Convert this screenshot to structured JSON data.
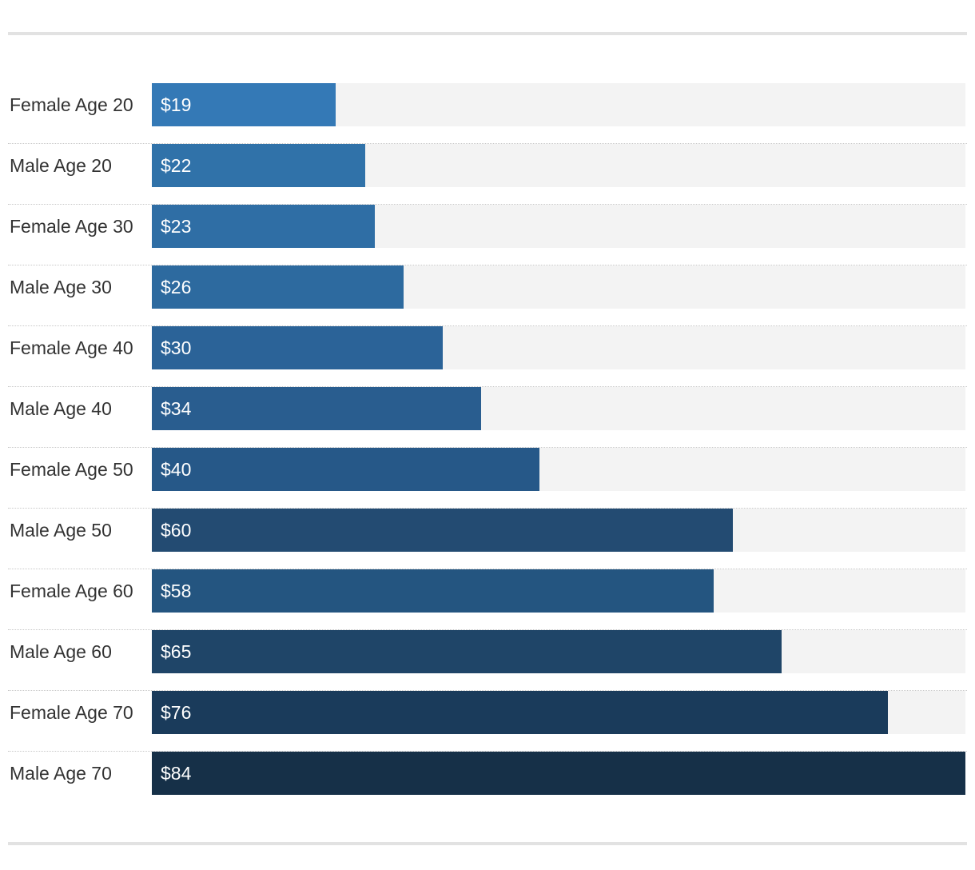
{
  "chart_data": {
    "type": "bar",
    "orientation": "horizontal",
    "categories": [
      "Female Age 20",
      "Male Age 20",
      "Female Age 30",
      "Male Age 30",
      "Female Age 40",
      "Male Age 40",
      "Female Age 50",
      "Male Age 50",
      "Female Age 60",
      "Male Age 60",
      "Female Age 70",
      "Male Age 70"
    ],
    "values": [
      19,
      22,
      23,
      26,
      30,
      34,
      40,
      60,
      58,
      65,
      76,
      84
    ],
    "value_labels": [
      "$19",
      "$22",
      "$23",
      "$26",
      "$30",
      "$34",
      "$40",
      "$60",
      "$58",
      "$65",
      "$76",
      "$84"
    ],
    "xlim": [
      0,
      84
    ],
    "grid": false,
    "colors": [
      "#3479b6",
      "#3072a9",
      "#2f6ea5",
      "#2d6a9f",
      "#2b6398",
      "#295d8f",
      "#265888",
      "#234b72",
      "#245580",
      "#1f4568",
      "#1a3b5b",
      "#163048"
    ],
    "track_color": "#f3f3f3"
  }
}
